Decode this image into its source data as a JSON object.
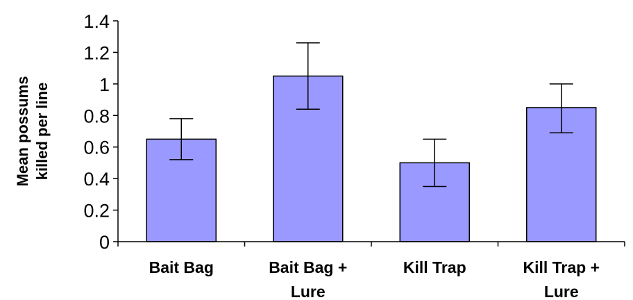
{
  "chart_data": {
    "type": "bar",
    "title": "",
    "ylabel": [
      "Mean possums",
      "killed per line"
    ],
    "xlabel": "",
    "categories": [
      [
        "Bait Bag"
      ],
      [
        "Bait Bag +",
        "Lure"
      ],
      [
        "Kill Trap"
      ],
      [
        "Kill Trap +",
        "Lure"
      ]
    ],
    "values": [
      0.65,
      1.05,
      0.5,
      0.85
    ],
    "error_low": [
      0.52,
      0.84,
      0.35,
      0.69
    ],
    "error_high": [
      0.78,
      1.26,
      0.65,
      1.0
    ],
    "ylim": [
      0,
      1.4
    ],
    "yticks": [
      0,
      0.2,
      0.4,
      0.6,
      0.8,
      1,
      1.2,
      1.4
    ],
    "ytick_labels": [
      "0",
      "0.2",
      "0.4",
      "0.6",
      "0.8",
      "1",
      "1.2",
      "1.4"
    ],
    "grid": false,
    "legend": "none",
    "colors": {
      "bar_fill": "#9999ff",
      "bar_stroke": "#000000",
      "axis": "#000000",
      "error_bar": "#000000"
    }
  }
}
